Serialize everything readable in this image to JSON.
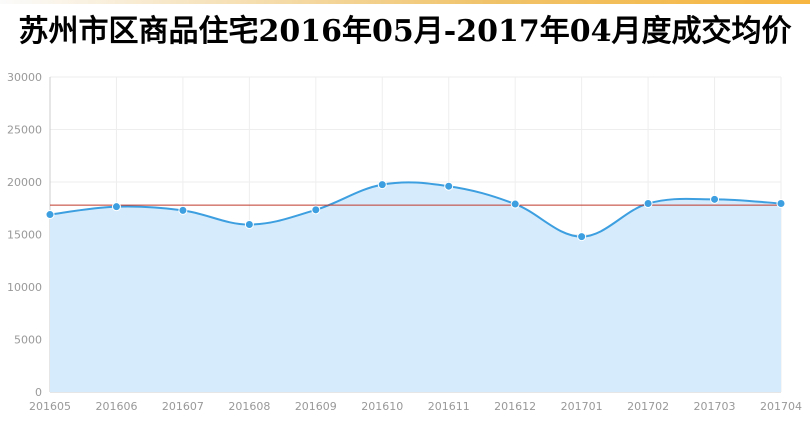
{
  "title": "苏州市区商品住宅2016年05月-2017年04月度成交均价",
  "colors": {
    "line": "#3d9fe0",
    "area": "#d6ecfc",
    "reference": "#c0392b",
    "grid": "#eeeeee",
    "axis": "#cccccc"
  },
  "chart_data": {
    "type": "area",
    "title": "苏州市区商品住宅2016年05月-2017年04月度成交均价",
    "xlabel": "",
    "ylabel": "",
    "categories": [
      "201605",
      "201606",
      "201607",
      "201608",
      "201609",
      "201610",
      "201611",
      "201612",
      "201701",
      "201702",
      "201703",
      "201704"
    ],
    "series": [
      {
        "values": [
          16900,
          17650,
          17300,
          15950,
          17350,
          19750,
          19600,
          17900,
          14800,
          17950,
          18350,
          17950
        ]
      }
    ],
    "reference_line": 17800,
    "ylim": [
      0,
      30000
    ],
    "yticks": [
      0,
      5000,
      10000,
      15000,
      20000,
      25000,
      30000
    ],
    "grid": true,
    "legend": "none"
  }
}
